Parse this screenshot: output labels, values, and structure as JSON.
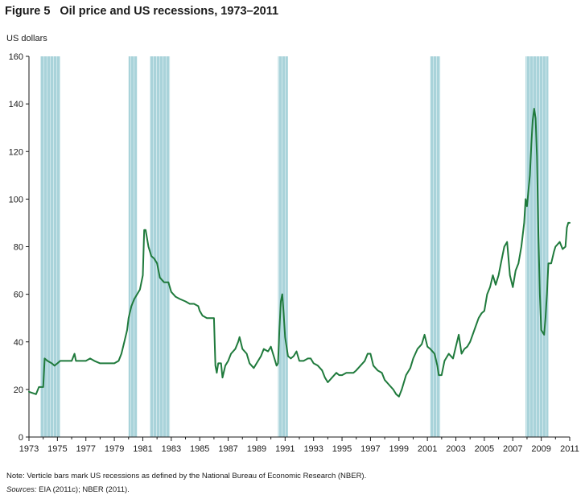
{
  "figure": {
    "number": "Figure 5",
    "title": "Oil price and US recessions, 1973–2011"
  },
  "note": "Note: Verticle bars mark US recessions as defined by the National Bureau of Economic Research (NBER).",
  "sources": {
    "label": "Sources:",
    "text": " EIA (2011c); NBER (2011)."
  },
  "colors": {
    "line": "#1f7a3c",
    "recession": "#a9d3da",
    "recession_stripe": "#cfe7eb",
    "axis": "#1a1a1a"
  },
  "chart_data": {
    "type": "line",
    "title": "Oil price and US recessions, 1973–2011",
    "xlabel": "",
    "ylabel": "US dollars",
    "xlim": [
      1973,
      2011
    ],
    "ylim": [
      0,
      160
    ],
    "y_ticks": [
      0,
      20,
      40,
      60,
      80,
      100,
      120,
      140,
      160
    ],
    "x_ticks": [
      1973,
      1975,
      1977,
      1979,
      1981,
      1983,
      1985,
      1987,
      1989,
      1991,
      1993,
      1995,
      1997,
      1999,
      2001,
      2003,
      2005,
      2007,
      2009,
      2011
    ],
    "grid": false,
    "recessions": [
      {
        "start": 1973.8,
        "end": 1975.2
      },
      {
        "start": 1980.0,
        "end": 1980.6
      },
      {
        "start": 1981.5,
        "end": 1982.9
      },
      {
        "start": 1990.5,
        "end": 1991.2
      },
      {
        "start": 2001.2,
        "end": 2001.9
      },
      {
        "start": 2007.9,
        "end": 2009.5
      }
    ],
    "series": [
      {
        "name": "Oil price",
        "points": [
          [
            1973.0,
            19
          ],
          [
            1973.5,
            18
          ],
          [
            1973.7,
            21
          ],
          [
            1974.0,
            21
          ],
          [
            1974.1,
            33
          ],
          [
            1974.3,
            32
          ],
          [
            1974.6,
            31
          ],
          [
            1974.8,
            30
          ],
          [
            1975.0,
            31
          ],
          [
            1975.2,
            32
          ],
          [
            1975.5,
            32
          ],
          [
            1975.8,
            32
          ],
          [
            1976.0,
            32
          ],
          [
            1976.2,
            35
          ],
          [
            1976.3,
            32
          ],
          [
            1976.8,
            32
          ],
          [
            1977.0,
            32
          ],
          [
            1977.3,
            33
          ],
          [
            1977.6,
            32
          ],
          [
            1978.0,
            31
          ],
          [
            1978.5,
            31
          ],
          [
            1979.0,
            31
          ],
          [
            1979.3,
            32
          ],
          [
            1979.5,
            35
          ],
          [
            1979.7,
            40
          ],
          [
            1979.9,
            45
          ],
          [
            1980.0,
            50
          ],
          [
            1980.2,
            55
          ],
          [
            1980.4,
            58
          ],
          [
            1980.6,
            60
          ],
          [
            1980.8,
            62
          ],
          [
            1981.0,
            68
          ],
          [
            1981.1,
            87
          ],
          [
            1981.2,
            87
          ],
          [
            1981.4,
            80
          ],
          [
            1981.6,
            76
          ],
          [
            1981.8,
            75
          ],
          [
            1982.0,
            73
          ],
          [
            1982.2,
            67
          ],
          [
            1982.5,
            65
          ],
          [
            1982.8,
            65
          ],
          [
            1983.0,
            61
          ],
          [
            1983.3,
            59
          ],
          [
            1983.6,
            58
          ],
          [
            1984.0,
            57
          ],
          [
            1984.3,
            56
          ],
          [
            1984.6,
            56
          ],
          [
            1984.9,
            55
          ],
          [
            1985.0,
            53
          ],
          [
            1985.2,
            51
          ],
          [
            1985.5,
            50
          ],
          [
            1985.8,
            50
          ],
          [
            1986.0,
            50
          ],
          [
            1986.1,
            30
          ],
          [
            1986.2,
            27
          ],
          [
            1986.3,
            31
          ],
          [
            1986.5,
            31
          ],
          [
            1986.6,
            25
          ],
          [
            1986.8,
            30
          ],
          [
            1987.0,
            32
          ],
          [
            1987.2,
            35
          ],
          [
            1987.5,
            37
          ],
          [
            1987.7,
            40
          ],
          [
            1987.8,
            42
          ],
          [
            1988.0,
            37
          ],
          [
            1988.3,
            35
          ],
          [
            1988.5,
            31
          ],
          [
            1988.8,
            29
          ],
          [
            1989.0,
            31
          ],
          [
            1989.3,
            34
          ],
          [
            1989.5,
            37
          ],
          [
            1989.8,
            36
          ],
          [
            1990.0,
            38
          ],
          [
            1990.2,
            34
          ],
          [
            1990.4,
            30
          ],
          [
            1990.5,
            31
          ],
          [
            1990.6,
            45
          ],
          [
            1990.7,
            57
          ],
          [
            1990.8,
            60
          ],
          [
            1990.9,
            52
          ],
          [
            1991.0,
            42
          ],
          [
            1991.2,
            34
          ],
          [
            1991.4,
            33
          ],
          [
            1991.6,
            34
          ],
          [
            1991.8,
            36
          ],
          [
            1992.0,
            32
          ],
          [
            1992.3,
            32
          ],
          [
            1992.6,
            33
          ],
          [
            1992.8,
            33
          ],
          [
            1993.0,
            31
          ],
          [
            1993.3,
            30
          ],
          [
            1993.6,
            28
          ],
          [
            1993.8,
            25
          ],
          [
            1994.0,
            23
          ],
          [
            1994.3,
            25
          ],
          [
            1994.6,
            27
          ],
          [
            1994.8,
            26
          ],
          [
            1995.0,
            26
          ],
          [
            1995.3,
            27
          ],
          [
            1995.6,
            27
          ],
          [
            1995.8,
            27
          ],
          [
            1996.0,
            28
          ],
          [
            1996.3,
            30
          ],
          [
            1996.6,
            32
          ],
          [
            1996.8,
            35
          ],
          [
            1997.0,
            35
          ],
          [
            1997.2,
            30
          ],
          [
            1997.5,
            28
          ],
          [
            1997.8,
            27
          ],
          [
            1998.0,
            24
          ],
          [
            1998.3,
            22
          ],
          [
            1998.6,
            20
          ],
          [
            1998.8,
            18
          ],
          [
            1999.0,
            17
          ],
          [
            1999.2,
            20
          ],
          [
            1999.5,
            26
          ],
          [
            1999.8,
            29
          ],
          [
            2000.0,
            33
          ],
          [
            2000.3,
            37
          ],
          [
            2000.6,
            39
          ],
          [
            2000.8,
            43
          ],
          [
            2001.0,
            38
          ],
          [
            2001.2,
            37
          ],
          [
            2001.5,
            35
          ],
          [
            2001.7,
            30
          ],
          [
            2001.8,
            26
          ],
          [
            2002.0,
            26
          ],
          [
            2002.2,
            32
          ],
          [
            2002.5,
            35
          ],
          [
            2002.8,
            33
          ],
          [
            2003.0,
            38
          ],
          [
            2003.2,
            43
          ],
          [
            2003.4,
            35
          ],
          [
            2003.6,
            37
          ],
          [
            2003.8,
            38
          ],
          [
            2004.0,
            40
          ],
          [
            2004.3,
            45
          ],
          [
            2004.6,
            50
          ],
          [
            2004.8,
            52
          ],
          [
            2005.0,
            53
          ],
          [
            2005.2,
            60
          ],
          [
            2005.4,
            63
          ],
          [
            2005.6,
            68
          ],
          [
            2005.8,
            64
          ],
          [
            2006.0,
            68
          ],
          [
            2006.2,
            74
          ],
          [
            2006.4,
            80
          ],
          [
            2006.6,
            82
          ],
          [
            2006.8,
            68
          ],
          [
            2007.0,
            63
          ],
          [
            2007.2,
            70
          ],
          [
            2007.4,
            73
          ],
          [
            2007.6,
            80
          ],
          [
            2007.8,
            90
          ],
          [
            2007.9,
            100
          ],
          [
            2008.0,
            97
          ],
          [
            2008.2,
            110
          ],
          [
            2008.3,
            123
          ],
          [
            2008.4,
            133
          ],
          [
            2008.5,
            138
          ],
          [
            2008.6,
            134
          ],
          [
            2008.7,
            118
          ],
          [
            2008.8,
            85
          ],
          [
            2008.9,
            60
          ],
          [
            2009.0,
            45
          ],
          [
            2009.1,
            44
          ],
          [
            2009.2,
            43
          ],
          [
            2009.3,
            50
          ],
          [
            2009.4,
            60
          ],
          [
            2009.5,
            73
          ],
          [
            2009.7,
            73
          ],
          [
            2009.9,
            78
          ],
          [
            2010.0,
            80
          ],
          [
            2010.3,
            82
          ],
          [
            2010.5,
            79
          ],
          [
            2010.7,
            80
          ],
          [
            2010.8,
            88
          ],
          [
            2010.9,
            90
          ],
          [
            2011.0,
            90
          ]
        ]
      }
    ]
  }
}
